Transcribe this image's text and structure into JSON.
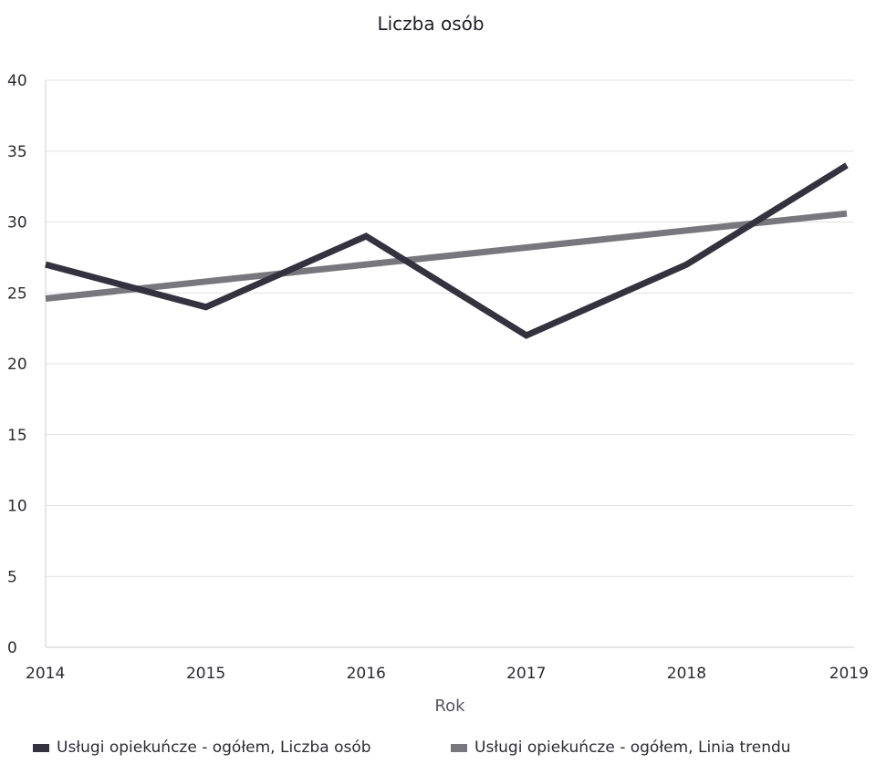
{
  "chart_data": {
    "type": "line",
    "title": "Liczba osób",
    "xlabel": "Rok",
    "ylabel": "",
    "x": [
      "2014",
      "2015",
      "2016",
      "2017",
      "2018",
      "2019"
    ],
    "yticks": [
      "0",
      "5",
      "10",
      "15",
      "20",
      "25",
      "30",
      "35",
      "40"
    ],
    "ylim": [
      0,
      40
    ],
    "grid": true,
    "legend_position": "bottom",
    "series": [
      {
        "name": "Usługi opiekuńcze - ogółem, Liczba osób",
        "values": [
          27,
          24,
          29,
          22,
          27,
          34
        ],
        "color": "#34323f"
      },
      {
        "name": "Usługi opiekuńcze - ogółem, Linia trendu",
        "values": [
          24.6,
          25.8,
          27.0,
          28.2,
          29.4,
          30.6
        ],
        "color": "#78777d"
      }
    ]
  }
}
